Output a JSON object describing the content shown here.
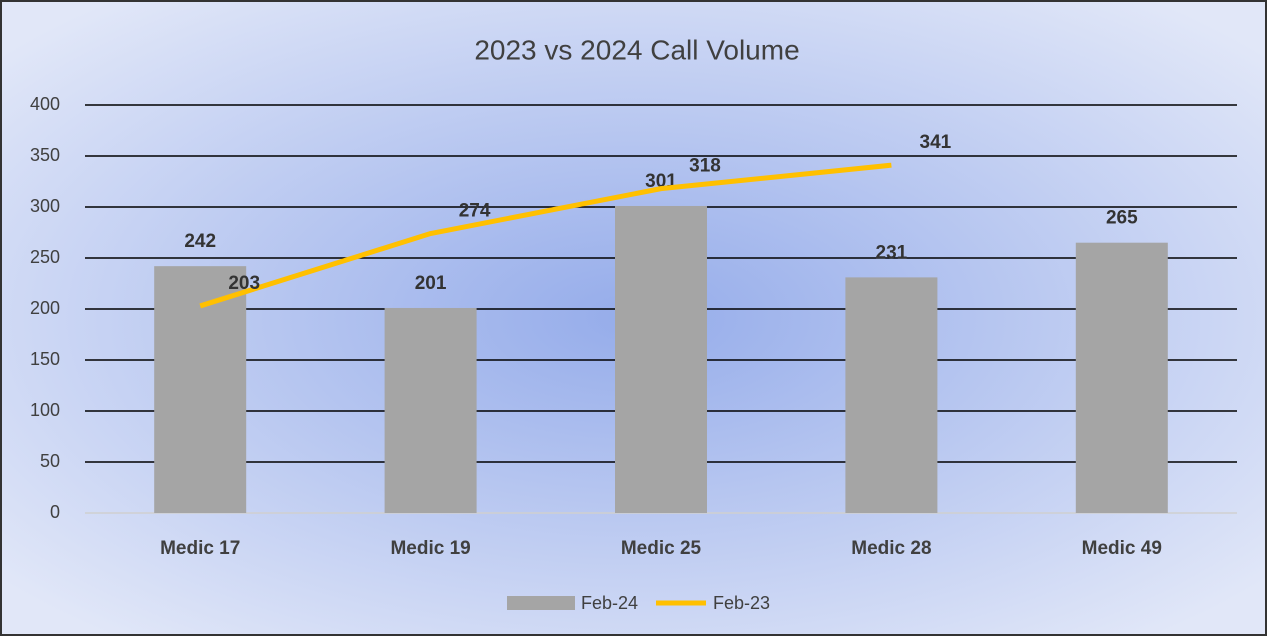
{
  "chart_data": {
    "type": "bar",
    "title": "2023 vs 2024 Call Volume",
    "categories": [
      "Medic 17",
      "Medic 19",
      "Medic 25",
      "Medic 28",
      "Medic 49"
    ],
    "series": [
      {
        "name": "Feb-24",
        "type": "bar",
        "color": "#a5a5a5",
        "values": [
          242,
          201,
          301,
          231,
          265
        ]
      },
      {
        "name": "Feb-23",
        "type": "line",
        "color": "#ffc000",
        "values": [
          203,
          274,
          318,
          341,
          null
        ]
      }
    ],
    "ylim": [
      0,
      400
    ],
    "yticks": [
      0,
      50,
      100,
      150,
      200,
      250,
      300,
      350,
      400
    ],
    "grid": true,
    "legend": "bottom"
  }
}
